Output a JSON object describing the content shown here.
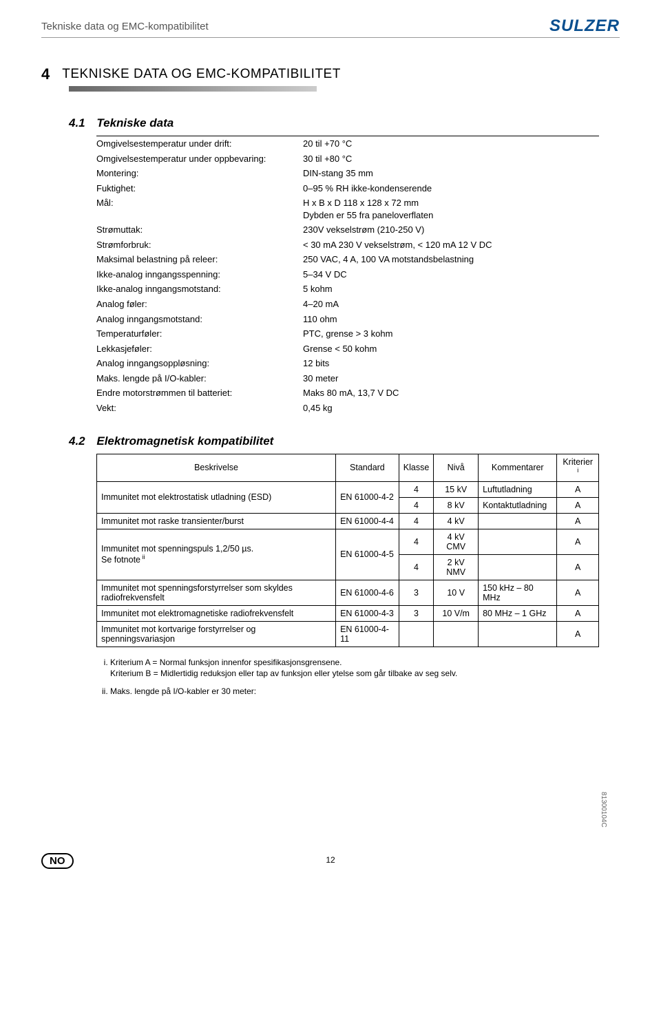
{
  "header": {
    "title": "Tekniske data og EMC-kompatibilitet",
    "logo": "SULZER"
  },
  "chapter": {
    "num": "4",
    "title": "TEKNISKE DATA OG EMC-KOMPATIBILITET"
  },
  "section1": {
    "num": "4.1",
    "title": "Tekniske data",
    "rows": [
      {
        "label": "Omgivelsestemperatur under drift:",
        "value": "20 til +70 °C"
      },
      {
        "label": "Omgivelsestemperatur under oppbevaring:",
        "value": "30 til +80 °C"
      },
      {
        "label": "Montering:",
        "value": "DIN-stang 35 mm"
      },
      {
        "label": "Fuktighet:",
        "value": "0–95 % RH ikke-kondenserende"
      },
      {
        "label": "Mål:",
        "value": "H x B x D 118 x 128 x 72 mm\nDybden er 55 fra paneloverflaten"
      },
      {
        "label": "Strømuttak:",
        "value": "230V vekselstrøm (210-250 V)"
      },
      {
        "label": "Strømforbruk:",
        "value": "< 30 mA 230 V vekselstrøm, < 120 mA 12 V DC"
      },
      {
        "label": "Maksimal belastning på releer:",
        "value": "250 VAC, 4 A, 100 VA motstandsbelastning"
      },
      {
        "label": "Ikke-analog inngangsspenning:",
        "value": "5–34 V DC"
      },
      {
        "label": "Ikke-analog inngangsmotstand:",
        "value": "5 kohm"
      },
      {
        "label": "Analog føler:",
        "value": "4–20 mA"
      },
      {
        "label": "Analog inngangsmotstand:",
        "value": "110 ohm"
      },
      {
        "label": "Temperaturføler:",
        "value": "PTC, grense > 3 kohm"
      },
      {
        "label": "Lekkasjeføler:",
        "value": "Grense < 50 kohm"
      },
      {
        "label": "Analog inngangsoppløsning:",
        "value": "12 bits"
      },
      {
        "label": "Maks. lengde på I/O-kabler:",
        "value": "30 meter"
      },
      {
        "label": "Endre motorstrømmen til batteriet:",
        "value": "Maks 80 mA, 13,7 V DC"
      },
      {
        "label": "Vekt:",
        "value": "0,45 kg"
      }
    ]
  },
  "section2": {
    "num": "4.2",
    "title": "Elektromagnetisk kompatibilitet",
    "headers": [
      "Beskrivelse",
      "Standard",
      "Klasse",
      "Nivå",
      "Kommentarer",
      "Kriterier"
    ],
    "header_sup": "i",
    "rows": [
      {
        "desc": "Immunitet mot elektrostatisk utladning (ESD)",
        "std": "EN 61000-4-2",
        "sub": [
          {
            "klasse": "4",
            "niva": "15 kV",
            "komm": "Luftutladning",
            "krit": "A"
          },
          {
            "klasse": "4",
            "niva": "8 kV",
            "komm": "Kontaktutladning",
            "krit": "A"
          }
        ]
      },
      {
        "desc": "Immunitet mot raske transienter/burst",
        "std": "EN 61000-4-4",
        "sub": [
          {
            "klasse": "4",
            "niva": "4 kV",
            "komm": "",
            "krit": "A"
          }
        ]
      },
      {
        "desc": "Immunitet mot spenningspuls 1,2/50 µs.\nSe fotnote",
        "desc_sup": "ii",
        "std": "EN 61000-4-5",
        "sub": [
          {
            "klasse": "4",
            "niva": "4 kV CMV",
            "komm": "",
            "krit": "A"
          },
          {
            "klasse": "4",
            "niva": "2 kV NMV",
            "komm": "",
            "krit": "A"
          }
        ]
      },
      {
        "desc": "Immunitet mot spenningsforstyrrelser som skyldes radiofrekvensfelt",
        "std": "EN 61000-4-6",
        "sub": [
          {
            "klasse": "3",
            "niva": "10 V",
            "komm": "150 kHz – 80 MHz",
            "krit": "A"
          }
        ]
      },
      {
        "desc": "Immunitet mot elektromagnetiske radiofrekvensfelt",
        "std": "EN 61000-4-3",
        "sub": [
          {
            "klasse": "3",
            "niva": "10 V/m",
            "komm": "80 MHz – 1 GHz",
            "krit": "A"
          }
        ]
      },
      {
        "desc": "Immunitet mot kortvarige forstyrrelser og spenningsvariasjon",
        "std": "EN 61000-4-11",
        "sub": [
          {
            "klasse": "",
            "niva": "",
            "komm": "",
            "krit": "A"
          }
        ]
      }
    ]
  },
  "notes": [
    "Kriterium A = Normal funksjon innenfor spesifikasjonsgrensene.\nKriterium B = Midlertidig reduksjon eller tap av funksjon eller ytelse som går tilbake av seg selv.",
    "Maks. lengde på I/O-kabler er 30 meter:"
  ],
  "footer": {
    "lang": "NO",
    "page": "12",
    "docid": "81300104C"
  }
}
